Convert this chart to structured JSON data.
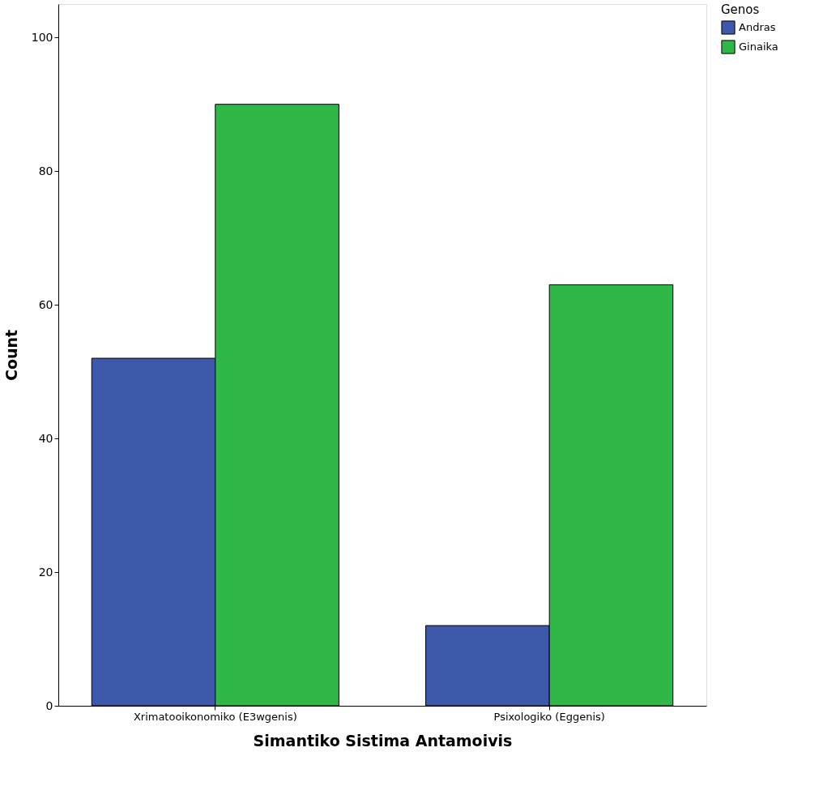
{
  "chart_data": {
    "type": "bar",
    "xlabel": "Simantiko Sistima Antamoivis",
    "ylabel": "Count",
    "legend_title": "Genos",
    "categories": [
      "Xrimatooikonomiko (E3wgenis)",
      "Psixologiko (Eggenis)"
    ],
    "series": [
      {
        "name": "Andras",
        "color": "#3e58ac",
        "values": [
          52,
          12
        ]
      },
      {
        "name": "Ginaika",
        "color": "#2fb847",
        "values": [
          90,
          63
        ]
      }
    ],
    "ylim": [
      0,
      105
    ],
    "yticks": [
      0,
      20,
      40,
      60,
      80,
      100
    ],
    "grid": false,
    "legend": "top right"
  }
}
